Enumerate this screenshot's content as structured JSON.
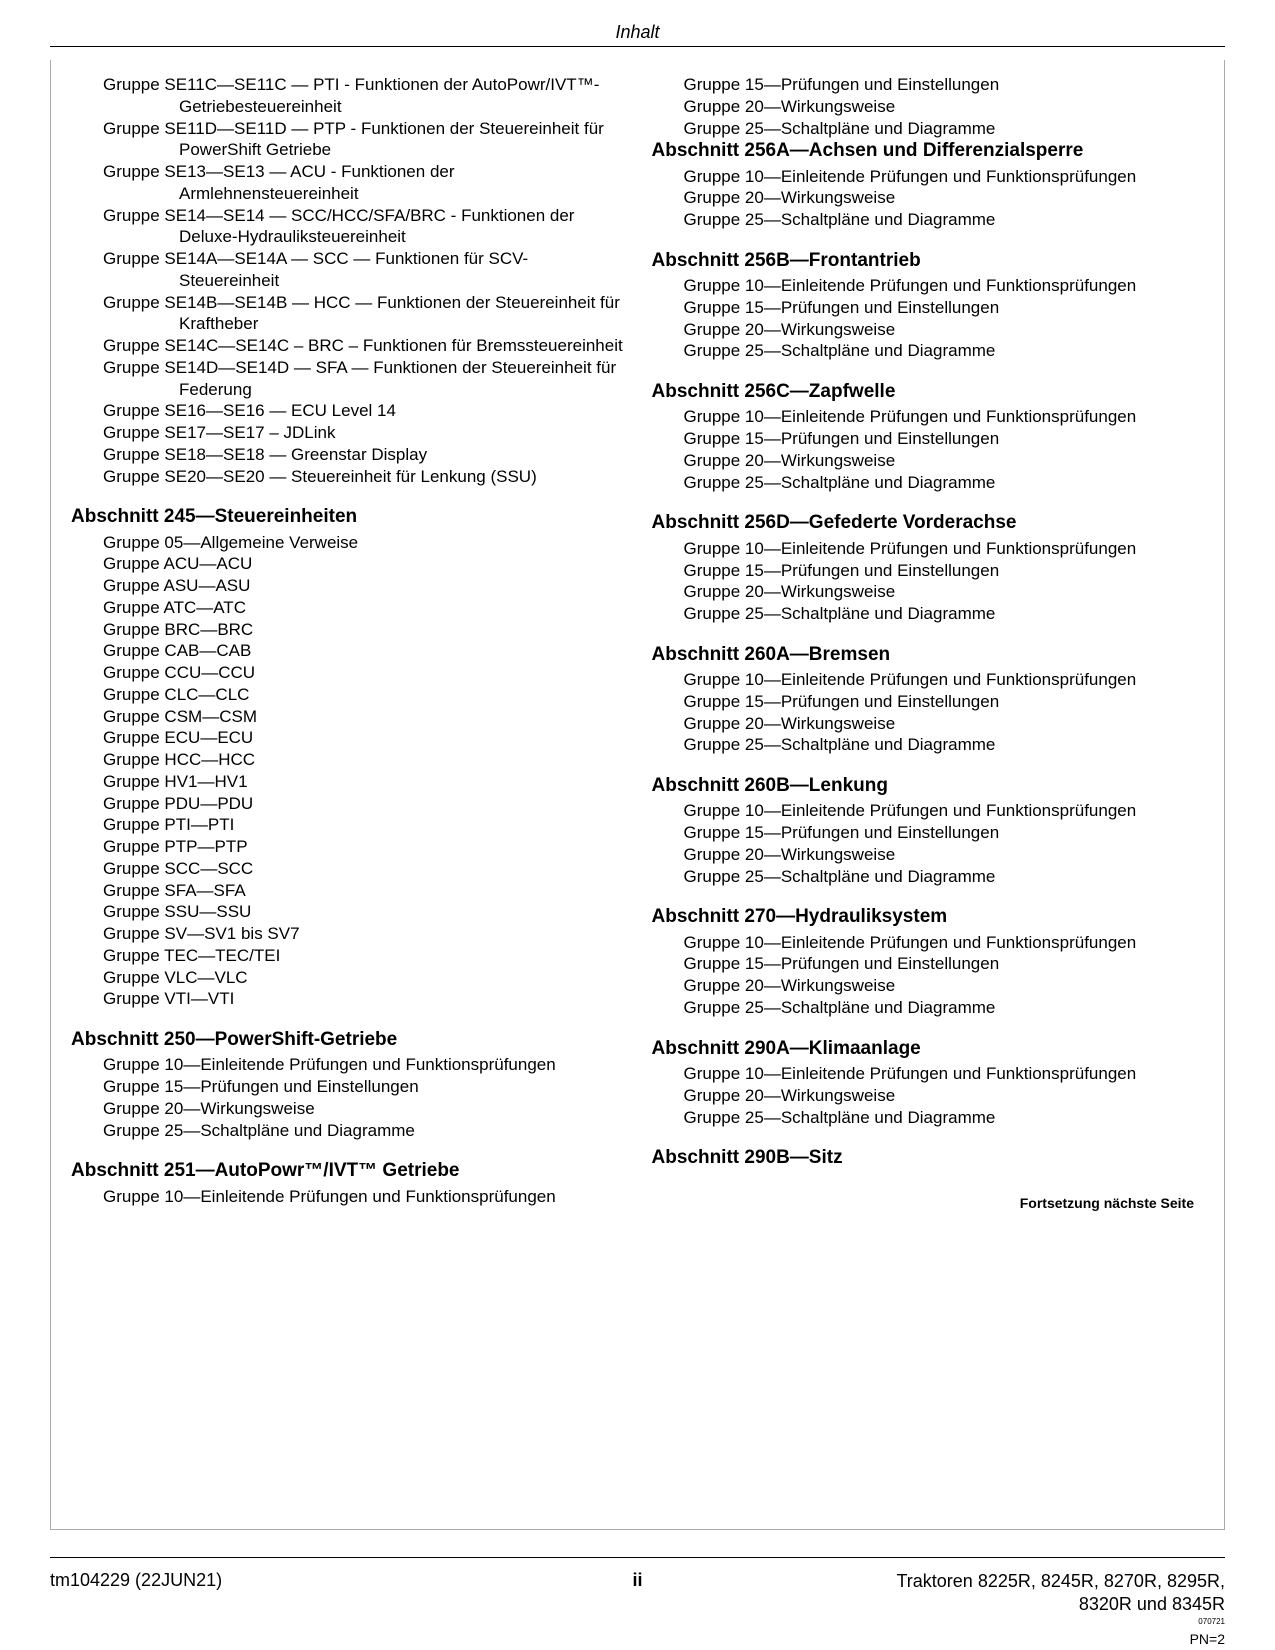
{
  "header": {
    "title": "Inhalt"
  },
  "leftCol": {
    "initialItems": [
      "Gruppe SE11C—SE11C — PTI - Funktionen der AutoPowr/IVT™-Getriebesteuereinheit",
      "Gruppe SE11D—SE11D — PTP - Funktionen der Steuereinheit für PowerShift Getriebe",
      "Gruppe SE13—SE13 — ACU - Funktionen der Armlehnensteuereinheit",
      "Gruppe SE14—SE14 — SCC/HCC/SFA/BRC - Funktionen der Deluxe-Hydrauliksteuereinheit",
      "Gruppe SE14A—SE14A — SCC — Funktionen für SCV-Steuereinheit",
      "Gruppe SE14B—SE14B — HCC — Funktionen der Steuereinheit für Kraftheber",
      "Gruppe SE14C—SE14C – BRC – Funktionen für Bremssteuereinheit",
      "Gruppe SE14D—SE14D — SFA — Funktionen der Steuereinheit für Federung",
      "Gruppe SE16—SE16 — ECU Level 14",
      "Gruppe SE17—SE17 – JDLink",
      "Gruppe SE18—SE18 — Greenstar Display",
      "Gruppe SE20—SE20 — Steuereinheit für Lenkung (SSU)"
    ],
    "sections": [
      {
        "title": "Abschnitt 245—Steuereinheiten",
        "items": [
          "Gruppe 05—Allgemeine Verweise",
          "Gruppe ACU—ACU",
          "Gruppe ASU—ASU",
          "Gruppe ATC—ATC",
          "Gruppe BRC—BRC",
          "Gruppe CAB—CAB",
          "Gruppe CCU—CCU",
          "Gruppe CLC—CLC",
          "Gruppe CSM—CSM",
          "Gruppe ECU—ECU",
          "Gruppe HCC—HCC",
          "Gruppe HV1—HV1",
          "Gruppe PDU—PDU",
          "Gruppe PTI—PTI",
          "Gruppe PTP—PTP",
          "Gruppe SCC—SCC",
          "Gruppe SFA—SFA",
          "Gruppe SSU—SSU",
          "Gruppe SV—SV1 bis SV7",
          "Gruppe TEC—TEC/TEI",
          "Gruppe VLC—VLC",
          "Gruppe VTI—VTI"
        ]
      },
      {
        "title": "Abschnitt 250—PowerShift-Getriebe",
        "items": [
          "Gruppe 10—Einleitende Prüfungen und Funktionsprüfungen",
          "Gruppe 15—Prüfungen und Einstellungen",
          "Gruppe 20—Wirkungsweise",
          "Gruppe 25—Schaltpläne und Diagramme"
        ]
      },
      {
        "title": "Abschnitt 251—AutoPowr™/IVT™ Getriebe",
        "items": [
          "Gruppe 10—Einleitende Prüfungen und Funktionsprüfungen",
          "Gruppe 15—Prüfungen und Einstellungen",
          "Gruppe 20—Wirkungsweise",
          "Gruppe 25—Schaltpläne und Diagramme"
        ]
      }
    ]
  },
  "rightCol": {
    "sections": [
      {
        "title": "Abschnitt 256A—Achsen und Differenzialsperre",
        "items": [
          "Gruppe 10—Einleitende Prüfungen und Funktionsprüfungen",
          "Gruppe 20—Wirkungsweise",
          "Gruppe 25—Schaltpläne und Diagramme"
        ]
      },
      {
        "title": "Abschnitt 256B—Frontantrieb",
        "items": [
          "Gruppe 10—Einleitende Prüfungen und Funktionsprüfungen",
          "Gruppe 15—Prüfungen und Einstellungen",
          "Gruppe 20—Wirkungsweise",
          "Gruppe 25—Schaltpläne und Diagramme"
        ]
      },
      {
        "title": "Abschnitt 256C—Zapfwelle",
        "items": [
          "Gruppe 10—Einleitende Prüfungen und Funktionsprüfungen",
          "Gruppe 15—Prüfungen und Einstellungen",
          "Gruppe 20—Wirkungsweise",
          "Gruppe 25—Schaltpläne und Diagramme"
        ]
      },
      {
        "title": "Abschnitt 256D—Gefederte Vorderachse",
        "items": [
          "Gruppe 10—Einleitende Prüfungen und Funktionsprüfungen",
          "Gruppe 15—Prüfungen und Einstellungen",
          "Gruppe 20—Wirkungsweise",
          "Gruppe 25—Schaltpläne und Diagramme"
        ]
      },
      {
        "title": "Abschnitt 260A—Bremsen",
        "items": [
          "Gruppe 10—Einleitende Prüfungen und Funktionsprüfungen",
          "Gruppe 15—Prüfungen und Einstellungen",
          "Gruppe 20—Wirkungsweise",
          "Gruppe 25—Schaltpläne und Diagramme"
        ]
      },
      {
        "title": "Abschnitt 260B—Lenkung",
        "items": [
          "Gruppe 10—Einleitende Prüfungen und Funktionsprüfungen",
          "Gruppe 15—Prüfungen und Einstellungen",
          "Gruppe 20—Wirkungsweise",
          "Gruppe 25—Schaltpläne und Diagramme"
        ]
      },
      {
        "title": "Abschnitt 270—Hydrauliksystem",
        "items": [
          "Gruppe 10—Einleitende Prüfungen und Funktionsprüfungen",
          "Gruppe 15—Prüfungen und Einstellungen",
          "Gruppe 20—Wirkungsweise",
          "Gruppe 25—Schaltpläne und Diagramme"
        ]
      },
      {
        "title": "Abschnitt 290A—Klimaanlage",
        "items": [
          "Gruppe 10—Einleitende Prüfungen und Funktionsprüfungen",
          "Gruppe 20—Wirkungsweise",
          "Gruppe 25—Schaltpläne und Diagramme"
        ]
      },
      {
        "title": "Abschnitt 290B—Sitz",
        "items": []
      }
    ]
  },
  "continuation": "Fortsetzung nächste Seite",
  "footer": {
    "left": "tm104229 (22JUN21)",
    "center": "ii",
    "rightLine1": "Traktoren 8225R, 8245R, 8270R, 8295R,",
    "rightLine2": "8320R und 8345R",
    "small": "070721",
    "pn": "PN=2"
  }
}
